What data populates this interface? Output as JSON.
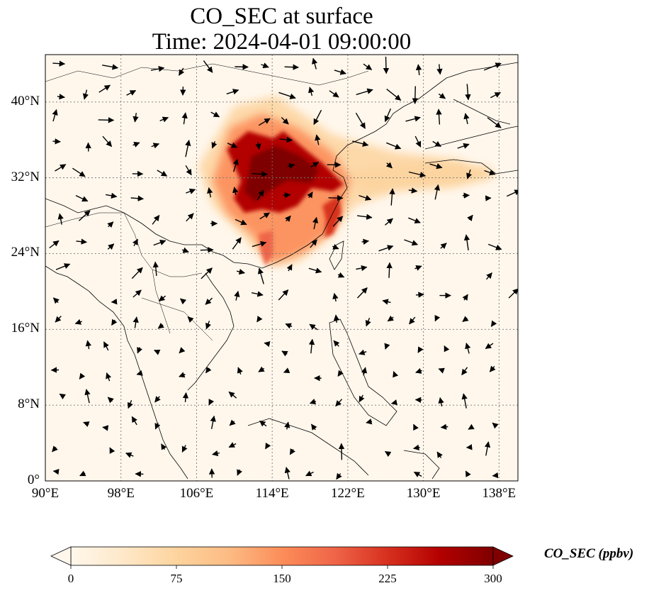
{
  "title_line1": "CO_SEC at surface",
  "title_line2": "Time: 2024-04-01 09:00:00",
  "map": {
    "extent_lon": [
      90,
      140
    ],
    "extent_lat": [
      0,
      45
    ],
    "lon_ticks": [
      "90°E",
      "98°E",
      "106°E",
      "114°E",
      "122°E",
      "130°E",
      "138°E"
    ],
    "lon_tick_values": [
      90,
      98,
      106,
      114,
      122,
      130,
      138
    ],
    "lat_ticks": [
      "0°",
      "8°N",
      "16°N",
      "24°N",
      "32°N",
      "40°N"
    ],
    "lat_tick_values": [
      0,
      8,
      16,
      24,
      32,
      40
    ],
    "gridlines": true,
    "field_variable": "CO_SEC",
    "plume_core_region": "East-central China around 110–121°E, 27–37°N",
    "vectors": "wind arrows"
  },
  "colorbar": {
    "label": "CO_SEC (ppbv)",
    "ticks": [
      "0",
      "75",
      "150",
      "225",
      "300"
    ],
    "tick_values": [
      0,
      75,
      150,
      225,
      300
    ],
    "vmin": 0,
    "vmax": 300,
    "extend": "both",
    "colormap": "OrRd",
    "colors": [
      "#fff7ec",
      "#fee8c8",
      "#fdd49e",
      "#fdbb84",
      "#fc8d59",
      "#ef6548",
      "#d7301f",
      "#b30000",
      "#7f0000"
    ]
  }
}
